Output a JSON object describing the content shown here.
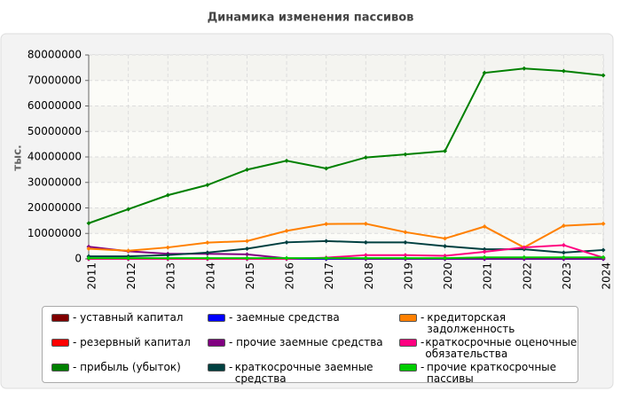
{
  "chart_data": {
    "type": "line",
    "title": "Динамика изменения пассивов",
    "y_label": "тыс.",
    "categories": [
      "2011",
      "2012",
      "2013",
      "2014",
      "2015",
      "2016",
      "2017",
      "2018",
      "2019",
      "2020",
      "2021",
      "2022",
      "2023",
      "2024"
    ],
    "ylim": [
      0,
      80000000
    ],
    "yticks": [
      0,
      10000000,
      20000000,
      30000000,
      40000000,
      50000000,
      60000000,
      70000000,
      80000000
    ],
    "grid": true,
    "series": [
      {
        "name": "уставный капитал",
        "color": "#800000",
        "values": [
          10000,
          10000,
          10000,
          10000,
          10000,
          10000,
          10000,
          10000,
          10000,
          10000,
          10000,
          10000,
          10000,
          10000
        ]
      },
      {
        "name": "резервный капитал",
        "color": "#ff0000",
        "values": [
          5000,
          5000,
          5000,
          5000,
          5000,
          5000,
          5000,
          5000,
          5000,
          5000,
          5000,
          5000,
          5000,
          5000
        ]
      },
      {
        "name": "прибыль (убыток)",
        "color": "#008000",
        "values": [
          14000000,
          19500000,
          25000000,
          29000000,
          35000000,
          38500000,
          35500000,
          39800000,
          41000000,
          42300000,
          73000000,
          74700000,
          73700000,
          72000000
        ]
      },
      {
        "name": "заемные средства",
        "color": "#0000ff",
        "values": [
          0,
          0,
          0,
          0,
          0,
          0,
          0,
          0,
          0,
          0,
          0,
          0,
          0,
          0
        ]
      },
      {
        "name": "прочие заемные средства",
        "color": "#800080",
        "values": [
          4800000,
          3000000,
          2000000,
          2000000,
          1800000,
          200000,
          200000,
          100000,
          100000,
          100000,
          100000,
          100000,
          100000,
          100000
        ]
      },
      {
        "name": "краткосрочные заемные средства",
        "color": "#004040",
        "values": [
          1000000,
          1000000,
          1500000,
          2500000,
          4000000,
          6500000,
          7000000,
          6500000,
          6500000,
          5000000,
          3800000,
          3800000,
          2500000,
          3500000
        ]
      },
      {
        "name": "кредиторская задолженность",
        "color": "#ff8000",
        "values": [
          4000000,
          3200000,
          4500000,
          6400000,
          7000000,
          11000000,
          13700000,
          13800000,
          10500000,
          8000000,
          12700000,
          4500000,
          13000000,
          13800000
        ]
      },
      {
        "name": "краткосрочные оценочные обязательства",
        "color": "#ff0080",
        "values": [
          0,
          0,
          0,
          0,
          0,
          0,
          500000,
          1500000,
          1500000,
          1200000,
          2800000,
          4500000,
          5400000,
          500000
        ]
      },
      {
        "name": "прочие краткосрочные пассивы",
        "color": "#00cc00",
        "values": [
          300000,
          300000,
          300000,
          300000,
          300000,
          300000,
          300000,
          300000,
          300000,
          300000,
          600000,
          600000,
          600000,
          600000
        ]
      }
    ]
  }
}
